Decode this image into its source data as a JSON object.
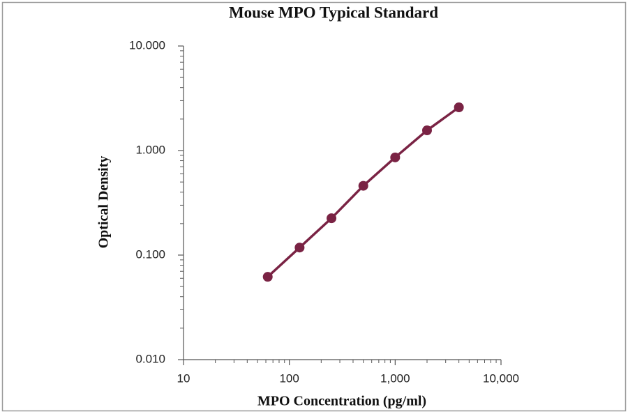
{
  "chart_data": {
    "type": "line",
    "title": "Mouse MPO Typical Standard",
    "x_label": "MPO Concentration (pg/ml)",
    "y_label": "Optical Density",
    "x": [
      62.5,
      125,
      250,
      500,
      1000,
      2000,
      4000
    ],
    "series": [
      {
        "color": "#7a2344",
        "values": [
          0.062,
          0.118,
          0.225,
          0.46,
          0.86,
          1.56,
          2.59
        ]
      }
    ],
    "x_log": true,
    "y_log": true,
    "minor_ticks": true,
    "xlim": [
      10,
      10000
    ],
    "xticks": [
      10,
      100,
      {
        "value": 1000,
        "label": "1,000"
      },
      {
        "value": 10000,
        "label": "10,000"
      }
    ],
    "ylim": [
      0.01,
      10
    ],
    "yticks": [
      {
        "value": 0.01,
        "label": "0.010"
      },
      {
        "value": 0.1,
        "label": "0.100"
      },
      {
        "value": 1,
        "label": "1.000"
      },
      {
        "value": 10,
        "label": "10.000"
      }
    ]
  }
}
